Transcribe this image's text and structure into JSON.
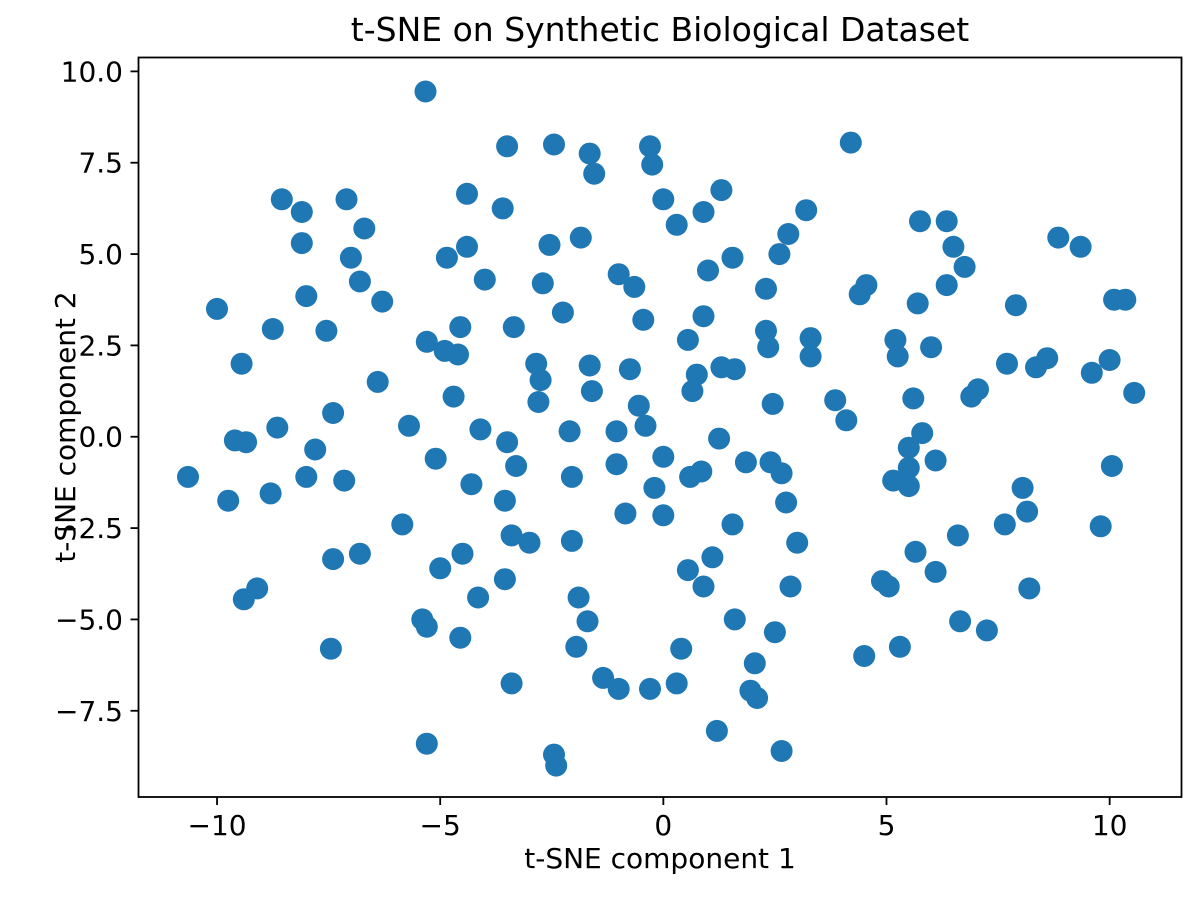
{
  "figure_bg": "#ffffff",
  "chart_data": {
    "type": "scatter",
    "title": "t-SNE on Synthetic Biological Dataset",
    "xlabel": "t-SNE component 1",
    "ylabel": "t-SNE component 2",
    "xlim": [
      -11.76,
      11.61
    ],
    "ylim": [
      -9.86,
      10.38
    ],
    "grid": false,
    "legend": null,
    "marker_color": "#1f77b4",
    "marker_radius_px": 11,
    "axis_color": "#000000",
    "x_ticks": {
      "values": [
        -10,
        -5,
        0,
        5,
        10
      ],
      "labels": [
        "−10",
        "−5",
        "0",
        "5",
        "10"
      ]
    },
    "y_ticks": {
      "values": [
        10,
        7.5,
        5,
        2.5,
        0,
        -2.5,
        -5,
        -7.5
      ],
      "labels": [
        "10.0",
        "7.5",
        "5.0",
        "2.5",
        "0.0",
        "−2.5",
        "−5.0",
        "−7.5"
      ]
    },
    "points": [
      [
        -5.33,
        9.45
      ],
      [
        -8.55,
        6.5
      ],
      [
        -8.1,
        6.15
      ],
      [
        -7.1,
        6.5
      ],
      [
        -6.7,
        5.7
      ],
      [
        -8.1,
        5.3
      ],
      [
        -7.0,
        4.9
      ],
      [
        -6.8,
        4.25
      ],
      [
        -4.4,
        6.65
      ],
      [
        -4.85,
        4.9
      ],
      [
        -4.4,
        5.2
      ],
      [
        -4.0,
        4.3
      ],
      [
        -8.0,
        3.85
      ],
      [
        -6.3,
        3.7
      ],
      [
        -10.0,
        3.5
      ],
      [
        -3.5,
        7.95
      ],
      [
        -2.45,
        8.0
      ],
      [
        -1.65,
        7.75
      ],
      [
        -1.55,
        7.2
      ],
      [
        -0.3,
        7.95
      ],
      [
        -0.25,
        7.45
      ],
      [
        1.3,
        6.75
      ],
      [
        0.9,
        6.15
      ],
      [
        0.0,
        6.5
      ],
      [
        0.3,
        5.8
      ],
      [
        3.2,
        6.2
      ],
      [
        2.8,
        5.55
      ],
      [
        2.6,
        5.0
      ],
      [
        1.55,
        4.9
      ],
      [
        -2.55,
        5.25
      ],
      [
        -1.85,
        5.45
      ],
      [
        -3.6,
        6.25
      ],
      [
        -2.7,
        4.2
      ],
      [
        -1.0,
        4.45
      ],
      [
        -0.65,
        4.1
      ],
      [
        1.0,
        4.55
      ],
      [
        2.3,
        4.05
      ],
      [
        4.2,
        8.05
      ],
      [
        5.75,
        5.9
      ],
      [
        6.35,
        5.9
      ],
      [
        6.5,
        5.2
      ],
      [
        6.75,
        4.65
      ],
      [
        6.35,
        4.15
      ],
      [
        8.85,
        5.45
      ],
      [
        9.35,
        5.2
      ],
      [
        4.55,
        4.15
      ],
      [
        4.4,
        3.9
      ],
      [
        5.7,
        3.65
      ],
      [
        7.9,
        3.6
      ],
      [
        10.1,
        3.75
      ],
      [
        10.35,
        3.75
      ],
      [
        -8.75,
        2.95
      ],
      [
        -7.55,
        2.9
      ],
      [
        -9.45,
        2.0
      ],
      [
        -5.3,
        2.6
      ],
      [
        -4.55,
        3.0
      ],
      [
        -4.9,
        2.35
      ],
      [
        -4.6,
        2.25
      ],
      [
        -6.4,
        1.5
      ],
      [
        -4.7,
        1.1
      ],
      [
        -7.4,
        0.65
      ],
      [
        -8.65,
        0.25
      ],
      [
        -9.6,
        -0.1
      ],
      [
        -9.35,
        -0.15
      ],
      [
        -7.8,
        -0.35
      ],
      [
        -10.65,
        -1.1
      ],
      [
        -9.75,
        -1.75
      ],
      [
        -8.8,
        -1.55
      ],
      [
        -8.0,
        -1.1
      ],
      [
        -7.15,
        -1.2
      ],
      [
        -5.7,
        0.3
      ],
      [
        -5.1,
        -0.6
      ],
      [
        -4.1,
        0.2
      ],
      [
        -4.3,
        -1.3
      ],
      [
        -5.85,
        -2.4
      ],
      [
        -3.35,
        3.0
      ],
      [
        -2.25,
        3.4
      ],
      [
        -0.45,
        3.2
      ],
      [
        0.9,
        3.3
      ],
      [
        0.55,
        2.65
      ],
      [
        2.3,
        2.9
      ],
      [
        2.35,
        2.45
      ],
      [
        3.3,
        2.7
      ],
      [
        3.3,
        2.2
      ],
      [
        -2.85,
        2.0
      ],
      [
        -2.75,
        1.55
      ],
      [
        -2.8,
        0.95
      ],
      [
        -1.65,
        1.95
      ],
      [
        -1.6,
        1.25
      ],
      [
        -0.75,
        1.85
      ],
      [
        0.75,
        1.7
      ],
      [
        0.65,
        1.25
      ],
      [
        1.3,
        1.9
      ],
      [
        1.6,
        1.85
      ],
      [
        2.45,
        0.9
      ],
      [
        3.85,
        1.0
      ],
      [
        -0.55,
        0.85
      ],
      [
        -2.1,
        0.15
      ],
      [
        -1.05,
        0.15
      ],
      [
        -0.4,
        0.3
      ],
      [
        1.25,
        -0.05
      ],
      [
        -3.5,
        -0.15
      ],
      [
        -3.3,
        -0.8
      ],
      [
        -3.55,
        -1.75
      ],
      [
        -2.05,
        -1.1
      ],
      [
        0.0,
        -0.55
      ],
      [
        -1.05,
        -0.75
      ],
      [
        0.6,
        -1.1
      ],
      [
        0.85,
        -0.95
      ],
      [
        -0.2,
        -1.4
      ],
      [
        1.85,
        -0.7
      ],
      [
        2.4,
        -0.7
      ],
      [
        2.65,
        -1.0
      ],
      [
        -0.85,
        -2.1
      ],
      [
        0.0,
        -2.15
      ],
      [
        2.75,
        -1.8
      ],
      [
        1.55,
        -2.4
      ],
      [
        -3.4,
        -2.7
      ],
      [
        -3.0,
        -2.9
      ],
      [
        -2.05,
        -2.85
      ],
      [
        3.0,
        -2.9
      ],
      [
        5.2,
        2.65
      ],
      [
        5.25,
        2.2
      ],
      [
        6.0,
        2.45
      ],
      [
        7.7,
        2.0
      ],
      [
        8.35,
        1.9
      ],
      [
        8.6,
        2.15
      ],
      [
        9.6,
        1.75
      ],
      [
        10.0,
        2.1
      ],
      [
        10.55,
        1.2
      ],
      [
        5.6,
        1.05
      ],
      [
        7.05,
        1.3
      ],
      [
        6.9,
        1.1
      ],
      [
        4.1,
        0.45
      ],
      [
        5.8,
        0.1
      ],
      [
        5.5,
        -0.3
      ],
      [
        6.1,
        -0.65
      ],
      [
        5.5,
        -0.85
      ],
      [
        5.15,
        -1.2
      ],
      [
        5.5,
        -1.35
      ],
      [
        10.05,
        -0.8
      ],
      [
        8.05,
        -1.4
      ],
      [
        8.15,
        -2.05
      ],
      [
        7.65,
        -2.4
      ],
      [
        9.8,
        -2.45
      ],
      [
        6.6,
        -2.7
      ],
      [
        -7.4,
        -3.35
      ],
      [
        -6.8,
        -3.2
      ],
      [
        -9.1,
        -4.15
      ],
      [
        -9.4,
        -4.45
      ],
      [
        -5.0,
        -3.6
      ],
      [
        -4.5,
        -3.2
      ],
      [
        -4.15,
        -4.4
      ],
      [
        -5.4,
        -5.0
      ],
      [
        -5.3,
        -5.2
      ],
      [
        -4.55,
        -5.5
      ],
      [
        -7.45,
        -5.8
      ],
      [
        -5.3,
        -8.4
      ],
      [
        -3.55,
        -3.9
      ],
      [
        -1.9,
        -4.4
      ],
      [
        -1.7,
        -5.05
      ],
      [
        -1.95,
        -5.75
      ],
      [
        1.1,
        -3.3
      ],
      [
        0.55,
        -3.65
      ],
      [
        0.9,
        -4.1
      ],
      [
        2.85,
        -4.1
      ],
      [
        1.6,
        -5.0
      ],
      [
        2.5,
        -5.35
      ],
      [
        2.05,
        -6.2
      ],
      [
        0.4,
        -5.8
      ],
      [
        -1.35,
        -6.6
      ],
      [
        -1.0,
        -6.9
      ],
      [
        -0.3,
        -6.9
      ],
      [
        0.3,
        -6.75
      ],
      [
        -3.4,
        -6.75
      ],
      [
        1.95,
        -6.95
      ],
      [
        2.1,
        -7.15
      ],
      [
        1.2,
        -8.05
      ],
      [
        2.65,
        -8.6
      ],
      [
        -2.45,
        -8.7
      ],
      [
        -2.4,
        -9.0
      ],
      [
        5.65,
        -3.15
      ],
      [
        6.1,
        -3.7
      ],
      [
        4.9,
        -3.95
      ],
      [
        5.05,
        -4.1
      ],
      [
        8.2,
        -4.15
      ],
      [
        6.65,
        -5.05
      ],
      [
        7.25,
        -5.3
      ],
      [
        5.3,
        -5.75
      ],
      [
        4.5,
        -6.0
      ]
    ]
  }
}
